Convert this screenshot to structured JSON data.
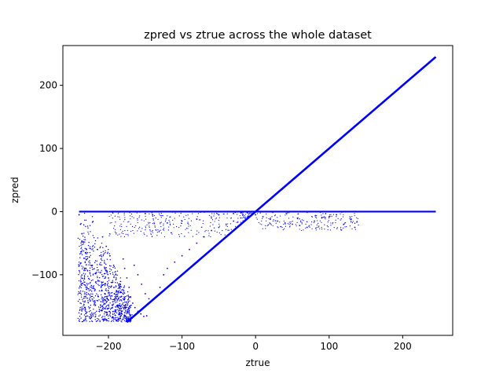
{
  "chart_data": {
    "type": "scatter",
    "title": "zpred vs ztrue across the whole dataset",
    "xlabel": "ztrue",
    "ylabel": "zpred",
    "xlim": [
      -262,
      268
    ],
    "ylim": [
      -196,
      263
    ],
    "xticks": [
      -200,
      -100,
      0,
      100,
      200
    ],
    "yticks": [
      -100,
      0,
      100,
      200
    ],
    "xtick_labels": [
      "−200",
      "−100",
      "0",
      "100",
      "200"
    ],
    "ytick_labels": [
      "−100",
      "0",
      "100",
      "200"
    ],
    "grid": false,
    "legend": "none",
    "series": [
      {
        "color": "#0000ff",
        "marker": "point",
        "description_points": {
          "diagonal_line": [
            [
              -175,
              -175
            ],
            [
              -100,
              -100
            ],
            [
              0,
              0
            ],
            [
              100,
              100
            ],
            [
              200,
              200
            ],
            [
              245,
              245
            ]
          ],
          "horizontal_line": [
            [
              -240,
              0
            ],
            [
              -100,
              0
            ],
            [
              0,
              0
            ],
            [
              100,
              0
            ],
            [
              245,
              0
            ]
          ],
          "scatter_sample": [
            [
              -240,
              -5
            ],
            [
              -238,
              -20
            ],
            [
              -236,
              -35
            ],
            [
              -234,
              -48
            ],
            [
              -230,
              -60
            ],
            [
              -226,
              -72
            ],
            [
              -222,
              -85
            ],
            [
              -218,
              -98
            ],
            [
              -214,
              -110
            ],
            [
              -210,
              -120
            ],
            [
              -205,
              -130
            ],
            [
              -200,
              -140
            ],
            [
              -195,
              -148
            ],
            [
              -190,
              -156
            ],
            [
              -185,
              -163
            ],
            [
              -180,
              -170
            ],
            [
              -176,
              -174
            ],
            [
              -215,
              -60
            ],
            [
              -210,
              -75
            ],
            [
              -205,
              -90
            ],
            [
              -200,
              -105
            ],
            [
              -196,
              -118
            ],
            [
              -192,
              -130
            ],
            [
              -188,
              -140
            ],
            [
              -184,
              -150
            ],
            [
              -182,
              -158
            ],
            [
              -178,
              -165
            ],
            [
              -173,
              -170
            ],
            [
              -208,
              -40
            ],
            [
              -203,
              -55
            ],
            [
              -198,
              -70
            ],
            [
              -193,
              -85
            ],
            [
              -190,
              -100
            ],
            [
              -186,
              -115
            ],
            [
              -183,
              -128
            ],
            [
              -180,
              -138
            ],
            [
              -177,
              -148
            ],
            [
              -174,
              -158
            ],
            [
              -170,
              -164
            ],
            [
              -180,
              -75
            ],
            [
              -178,
              -90
            ],
            [
              -175,
              -105
            ],
            [
              -172,
              -120
            ],
            [
              -170,
              -135
            ],
            [
              -167,
              -145
            ],
            [
              -164,
              -152
            ],
            [
              -160,
              -158
            ],
            [
              -156,
              -162
            ],
            [
              -152,
              -166
            ],
            [
              -148,
              -165
            ],
            [
              -165,
              -85
            ],
            [
              -160,
              -100
            ],
            [
              -155,
              -115
            ],
            [
              -150,
              -130
            ],
            [
              -145,
              -138
            ],
            [
              -140,
              -140
            ],
            [
              -135,
              -135
            ],
            [
              -130,
              -120
            ],
            [
              -125,
              -100
            ],
            [
              -120,
              -90
            ],
            [
              -110,
              -80
            ],
            [
              -100,
              -70
            ],
            [
              -90,
              -60
            ],
            [
              -80,
              -50
            ],
            [
              -70,
              -40
            ],
            [
              -60,
              -30
            ],
            [
              -50,
              -25
            ],
            [
              -40,
              -20
            ],
            [
              -30,
              -15
            ],
            [
              -20,
              -10
            ],
            [
              -10,
              -8
            ],
            [
              0,
              -5
            ],
            [
              10,
              -8
            ],
            [
              20,
              -12
            ],
            [
              30,
              -15
            ],
            [
              40,
              -18
            ],
            [
              50,
              -20
            ],
            [
              60,
              -22
            ],
            [
              70,
              -25
            ],
            [
              80,
              -15
            ],
            [
              90,
              -10
            ],
            [
              100,
              -8
            ],
            [
              110,
              -5
            ],
            [
              120,
              -20
            ],
            [
              130,
              -12
            ],
            [
              135,
              -25
            ],
            [
              -50,
              -5
            ],
            [
              -30,
              -3
            ],
            [
              -20,
              -2
            ],
            [
              -60,
              -10
            ],
            [
              -80,
              -12
            ],
            [
              -100,
              -15
            ],
            [
              -120,
              -18
            ],
            [
              -140,
              -5
            ],
            [
              -150,
              -3
            ]
          ]
        }
      }
    ]
  }
}
